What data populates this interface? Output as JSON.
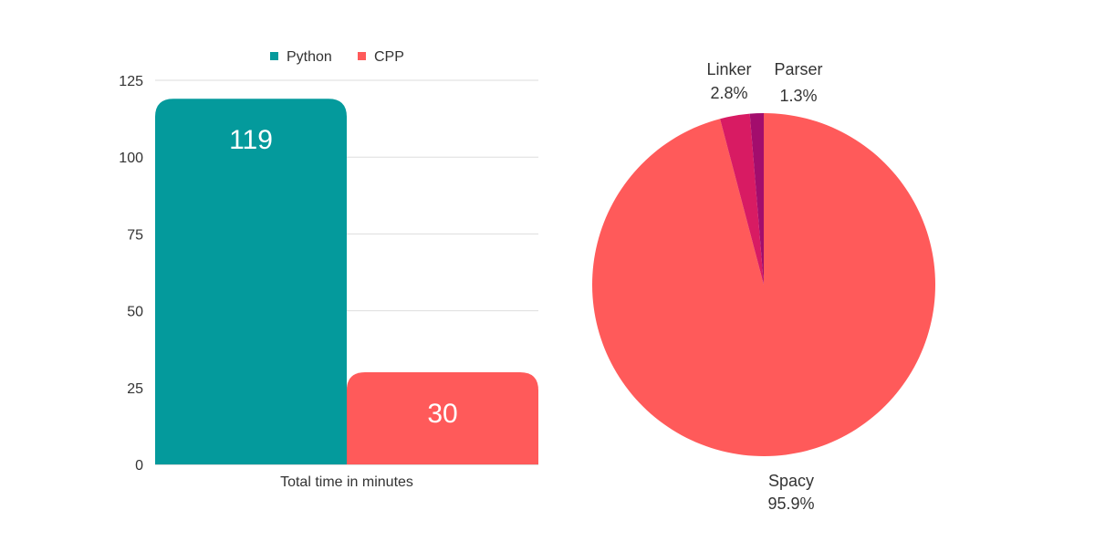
{
  "chart_data": [
    {
      "type": "bar",
      "categories": [
        "Total time in minutes"
      ],
      "series": [
        {
          "name": "Python",
          "values": [
            119
          ],
          "color": "#049a9c"
        },
        {
          "name": "CPP",
          "values": [
            30
          ],
          "color": "#ff5a5a"
        }
      ],
      "ylim": [
        0,
        125
      ],
      "yticks": [
        0,
        25,
        50,
        75,
        100,
        125
      ],
      "grid": true,
      "legend_placement": "top-center",
      "data_labels": true
    },
    {
      "type": "pie",
      "slices": [
        {
          "label": "Spacy",
          "value": 95.9,
          "display": "95.9%",
          "color": "#ff5a5a"
        },
        {
          "label": "Linker",
          "value": 2.8,
          "display": "2.8%",
          "color": "#d81b63"
        },
        {
          "label": "Parser",
          "value": 1.3,
          "display": "1.3%",
          "color": "#a30d6d"
        }
      ]
    }
  ]
}
